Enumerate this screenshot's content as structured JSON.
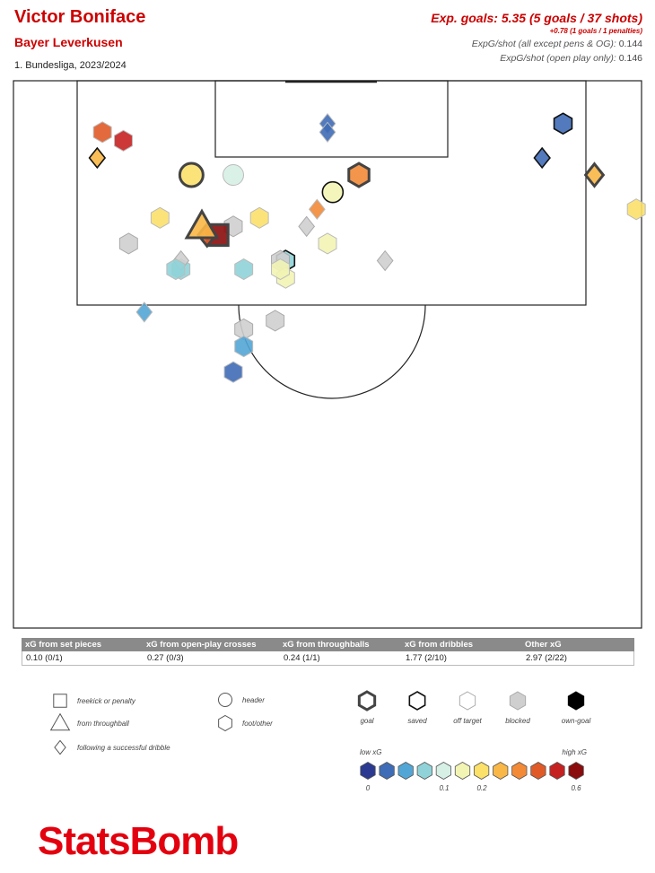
{
  "header": {
    "player": "Victor Boniface",
    "team": "Bayer Leverkusen",
    "competition": "1. Bundesliga, 2023/2024",
    "xg_main": "Exp. goals: 5.35 (5 goals / 37 shots)",
    "xg_pen": "+0.78 (1 goals / 1 penalties)",
    "xg_shot_label": "ExpG/shot (all except pens & OG):",
    "xg_shot_value": "0.144",
    "xg_open_label": "ExpG/shot (open play only):",
    "xg_open_value": "0.146"
  },
  "table": {
    "headers": [
      "xG from set pieces",
      "xG from open-play crosses",
      "xG from throughballs",
      "xG from dribbles",
      "Other xG"
    ],
    "values": [
      "0.10 (0/1)",
      "0.27 (0/3)",
      "0.24 (1/1)",
      "1.77 (2/10)",
      "2.97 (2/22)"
    ]
  },
  "legend": {
    "shapes": [
      "freekick or penalty",
      "from throughball",
      "following a successful dribble",
      "header",
      "foot/other"
    ],
    "outcomes": [
      "goal",
      "saved",
      "off target",
      "blocked",
      "own-goal"
    ],
    "scale_low": "low xG",
    "scale_high": "high xG",
    "scale_ticks": [
      "0",
      "0.1",
      "0.2",
      "0.6"
    ],
    "colors": [
      "#2b3990",
      "#3f6cb6",
      "#52a6d6",
      "#8fd3d8",
      "#d6f0e6",
      "#f2f4b4",
      "#fbe06a",
      "#f9b747",
      "#f28a37",
      "#e05a27",
      "#c62121",
      "#8a0c0c"
    ]
  },
  "logo": "StatsBomb",
  "chart_data": {
    "type": "scatter",
    "title": "Victor Boniface",
    "total_xg": 5.35,
    "goals": 5,
    "shots": 37,
    "penalty_xg": 0.78,
    "penalty_goals": 1,
    "penalties": 1,
    "xg_per_shot_excl_pens": 0.144,
    "xg_per_shot_open_play": 0.146,
    "categories": [
      "set pieces",
      "open-play crosses",
      "throughballs",
      "dribbles",
      "other"
    ],
    "category_xg": [
      0.1,
      0.27,
      0.24,
      1.77,
      2.97
    ],
    "category_goals": [
      0,
      0,
      1,
      2,
      2
    ],
    "category_shots": [
      1,
      3,
      1,
      10,
      22
    ],
    "shots_list": [
      {
        "x": 60,
        "y": 5,
        "shape": "diamond",
        "outcome": "off",
        "xg": 0.02
      },
      {
        "x": 60,
        "y": 6,
        "shape": "diamond",
        "outcome": "off",
        "xg": 0.03
      },
      {
        "x": 101,
        "y": 9,
        "shape": "diamond",
        "outcome": "saved",
        "xg": 0.03
      },
      {
        "x": 105,
        "y": 5,
        "shape": "hexagon",
        "outcome": "saved",
        "xg": 0.02
      },
      {
        "x": 16,
        "y": 9,
        "shape": "diamond",
        "outcome": "saved",
        "xg": 0.22
      },
      {
        "x": 21,
        "y": 7,
        "shape": "hexagon",
        "outcome": "off",
        "xg": 0.5
      },
      {
        "x": 17,
        "y": 6,
        "shape": "hexagon",
        "outcome": "off",
        "xg": 0.4
      },
      {
        "x": 111,
        "y": 11,
        "shape": "diamond",
        "outcome": "goal",
        "xg": 0.22
      },
      {
        "x": 66,
        "y": 11,
        "shape": "hexagon",
        "outcome": "goal",
        "xg": 0.35
      },
      {
        "x": 34,
        "y": 11,
        "shape": "circle",
        "outcome": "goal",
        "xg": 0.18
      },
      {
        "x": 42,
        "y": 11,
        "shape": "circle",
        "outcome": "off",
        "xg": 0.08
      },
      {
        "x": 61,
        "y": 13,
        "shape": "circle",
        "outcome": "saved",
        "xg": 0.12
      },
      {
        "x": 119,
        "y": 15,
        "shape": "hexagon",
        "outcome": "off",
        "xg": 0.16
      },
      {
        "x": 58,
        "y": 15,
        "shape": "diamond",
        "outcome": "off",
        "xg": 0.3
      },
      {
        "x": 28,
        "y": 16,
        "shape": "hexagon",
        "outcome": "off",
        "xg": 0.18
      },
      {
        "x": 47,
        "y": 16,
        "shape": "hexagon",
        "outcome": "off",
        "xg": 0.18
      },
      {
        "x": 42,
        "y": 17,
        "shape": "hexagon",
        "outcome": "blocked",
        "xg": 0.0
      },
      {
        "x": 39,
        "y": 18,
        "shape": "square",
        "outcome": "goal",
        "xg": 0.78
      },
      {
        "x": 37,
        "y": 18,
        "shape": "diamond",
        "outcome": "goal",
        "xg": 0.4
      },
      {
        "x": 36,
        "y": 17,
        "shape": "triangle",
        "outcome": "goal",
        "xg": 0.24
      },
      {
        "x": 56,
        "y": 17,
        "shape": "diamond",
        "outcome": "blocked",
        "xg": 0.0
      },
      {
        "x": 60,
        "y": 19,
        "shape": "hexagon",
        "outcome": "off",
        "xg": 0.1
      },
      {
        "x": 52,
        "y": 21,
        "shape": "hexagon",
        "outcome": "saved",
        "xg": 0.06
      },
      {
        "x": 51,
        "y": 21,
        "shape": "hexagon",
        "outcome": "blocked",
        "xg": 0.0
      },
      {
        "x": 52,
        "y": 23,
        "shape": "hexagon",
        "outcome": "off",
        "xg": 0.12
      },
      {
        "x": 51,
        "y": 22,
        "shape": "hexagon",
        "outcome": "off",
        "xg": 0.1
      },
      {
        "x": 71,
        "y": 21,
        "shape": "diamond",
        "outcome": "blocked",
        "xg": 0.0
      },
      {
        "x": 44,
        "y": 22,
        "shape": "hexagon",
        "outcome": "off",
        "xg": 0.06
      },
      {
        "x": 32,
        "y": 22,
        "shape": "hexagon",
        "outcome": "off",
        "xg": 0.06
      },
      {
        "x": 32,
        "y": 21,
        "shape": "diamond",
        "outcome": "blocked",
        "xg": 0.0
      },
      {
        "x": 31,
        "y": 22,
        "shape": "hexagon",
        "outcome": "off",
        "xg": 0.07
      },
      {
        "x": 22,
        "y": 19,
        "shape": "hexagon",
        "outcome": "blocked",
        "xg": 0.0
      },
      {
        "x": 25,
        "y": 27,
        "shape": "diamond",
        "outcome": "off",
        "xg": 0.04
      },
      {
        "x": 50,
        "y": 28,
        "shape": "hexagon",
        "outcome": "blocked",
        "xg": 0.0
      },
      {
        "x": 44,
        "y": 29,
        "shape": "hexagon",
        "outcome": "blocked",
        "xg": 0.0
      },
      {
        "x": 44,
        "y": 31,
        "shape": "hexagon",
        "outcome": "off",
        "xg": 0.05
      },
      {
        "x": 42,
        "y": 34,
        "shape": "hexagon",
        "outcome": "off",
        "xg": 0.03
      }
    ]
  }
}
